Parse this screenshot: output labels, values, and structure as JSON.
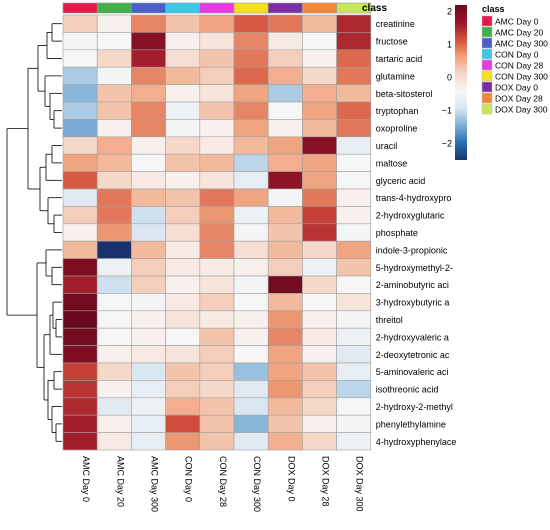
{
  "chart_data": {
    "type": "heatmap",
    "title": "",
    "annotation_title": "class",
    "legend_placement": "top-right",
    "columns": [
      "AMC Day 0",
      "AMC Day 20",
      "AMC Day 300",
      "CON Day 0",
      "CON Day 28",
      "CON Day 300",
      "DOX Day 0",
      "DOX Day 28",
      "DOX Day 300"
    ],
    "class_colors": [
      "#e8174a",
      "#3fb04a",
      "#4a5fc8",
      "#3ec8e6",
      "#e83ae0",
      "#f5e020",
      "#7a2fa8",
      "#f08a3a",
      "#c8e65a"
    ],
    "rows": [
      "creatinine",
      "fructose",
      "tartaric acid",
      "glutamine",
      "beta-sitosterol",
      "tryptophan",
      "oxoproline",
      "uracil",
      "maltose",
      "glyceric acid",
      "trans-4-hydroxypro",
      "2-hydroxyglutaric",
      "phosphate",
      "indole-3-propionic",
      "5-hydroxymethyl-2-",
      "2-aminobutyric aci",
      "3-hydroxybutyric a",
      "threitol",
      "2-hydroxyvaleric a",
      "2-deoxytetronic ac",
      "5-aminovaleric aci",
      "isothreonic acid",
      "2-hydroxy-2-methyl",
      "phenylethylamine",
      "4-hydroxyphenylace"
    ],
    "values": [
      [
        0.2,
        -0.3,
        0.8,
        0.3,
        0.6,
        1.1,
        0.9,
        0.4,
        1.5
      ],
      [
        -0.5,
        -0.4,
        1.9,
        -0.3,
        -0.1,
        0.8,
        -0.2,
        -0.4,
        1.5
      ],
      [
        -0.4,
        0.1,
        1.6,
        0.0,
        0.3,
        0.9,
        0.2,
        -0.3,
        1.0
      ],
      [
        -1.2,
        -0.5,
        0.8,
        0.4,
        0.2,
        1.0,
        0.5,
        0.1,
        0.9
      ],
      [
        -1.4,
        0.3,
        0.5,
        -0.3,
        -0.1,
        0.6,
        -1.2,
        0.5,
        0.4
      ],
      [
        -1.2,
        0.3,
        0.8,
        -0.6,
        0.3,
        0.8,
        -0.4,
        0.6,
        1.0
      ],
      [
        -1.5,
        -0.3,
        0.8,
        -0.5,
        -0.3,
        0.6,
        -0.3,
        0.4,
        0.9
      ],
      [
        0.1,
        0.5,
        -0.3,
        0.1,
        -0.2,
        0.4,
        0.6,
        1.9,
        -0.7
      ],
      [
        0.6,
        0.4,
        -0.4,
        0.3,
        0.4,
        -1.1,
        0.5,
        0.6,
        -0.4
      ],
      [
        1.1,
        0.1,
        -0.2,
        -0.3,
        -0.1,
        -0.7,
        1.8,
        0.6,
        -0.4
      ],
      [
        -0.8,
        0.9,
        0.4,
        0.3,
        0.9,
        0.6,
        -0.5,
        0.9,
        -0.3
      ],
      [
        0.2,
        0.9,
        -1.0,
        0.2,
        0.7,
        -0.6,
        0.4,
        1.3,
        -0.3
      ],
      [
        -0.3,
        0.7,
        -0.9,
        0.0,
        0.8,
        -0.5,
        0.3,
        1.4,
        -0.5
      ],
      [
        0.4,
        -2.5,
        0.4,
        -0.2,
        0.8,
        0.0,
        0.4,
        0.1,
        0.6
      ],
      [
        2.0,
        -0.6,
        0.2,
        -0.2,
        -0.2,
        -0.3,
        0.2,
        -0.6,
        0.3
      ],
      [
        1.6,
        -1.0,
        0.2,
        -0.3,
        -0.1,
        -0.5,
        2.1,
        0.1,
        -0.4
      ],
      [
        2.1,
        -0.4,
        -0.5,
        -0.2,
        0.2,
        -0.4,
        0.4,
        -0.4,
        -0.1
      ],
      [
        2.2,
        -0.4,
        -0.3,
        -0.1,
        -0.2,
        -0.3,
        0.7,
        -0.3,
        -0.5
      ],
      [
        2.1,
        -0.4,
        -0.3,
        -0.4,
        0.3,
        -0.3,
        0.8,
        -0.2,
        -0.6
      ],
      [
        2.0,
        -0.3,
        -0.2,
        -0.1,
        0.2,
        -0.4,
        0.6,
        -0.3,
        -0.8
      ],
      [
        1.3,
        0.1,
        -0.9,
        0.3,
        0.2,
        -1.3,
        0.6,
        0.3,
        -0.7
      ],
      [
        1.4,
        -0.3,
        -0.7,
        0.2,
        0.1,
        -0.8,
        0.7,
        0.2,
        -1.1
      ],
      [
        1.5,
        -0.8,
        -0.6,
        0.5,
        0.3,
        -0.9,
        0.4,
        0.1,
        -0.4
      ],
      [
        1.6,
        -0.3,
        -0.7,
        1.2,
        0.3,
        -1.4,
        0.3,
        -0.3,
        -0.5
      ],
      [
        1.6,
        -0.2,
        -0.7,
        0.7,
        0.3,
        -0.8,
        0.5,
        0.1,
        -0.6
      ]
    ],
    "color_scale": {
      "min": -2.5,
      "max": 2.2,
      "ticks": [
        -2,
        -1,
        0,
        1,
        2
      ],
      "colors": [
        "#19326e",
        "#2a6fb0",
        "#7fb0d8",
        "#d9e6f0",
        "#f7f7f7",
        "#f6d7c8",
        "#f0a07a",
        "#d4503c",
        "#9a1428",
        "#6b0a1e"
      ]
    }
  }
}
